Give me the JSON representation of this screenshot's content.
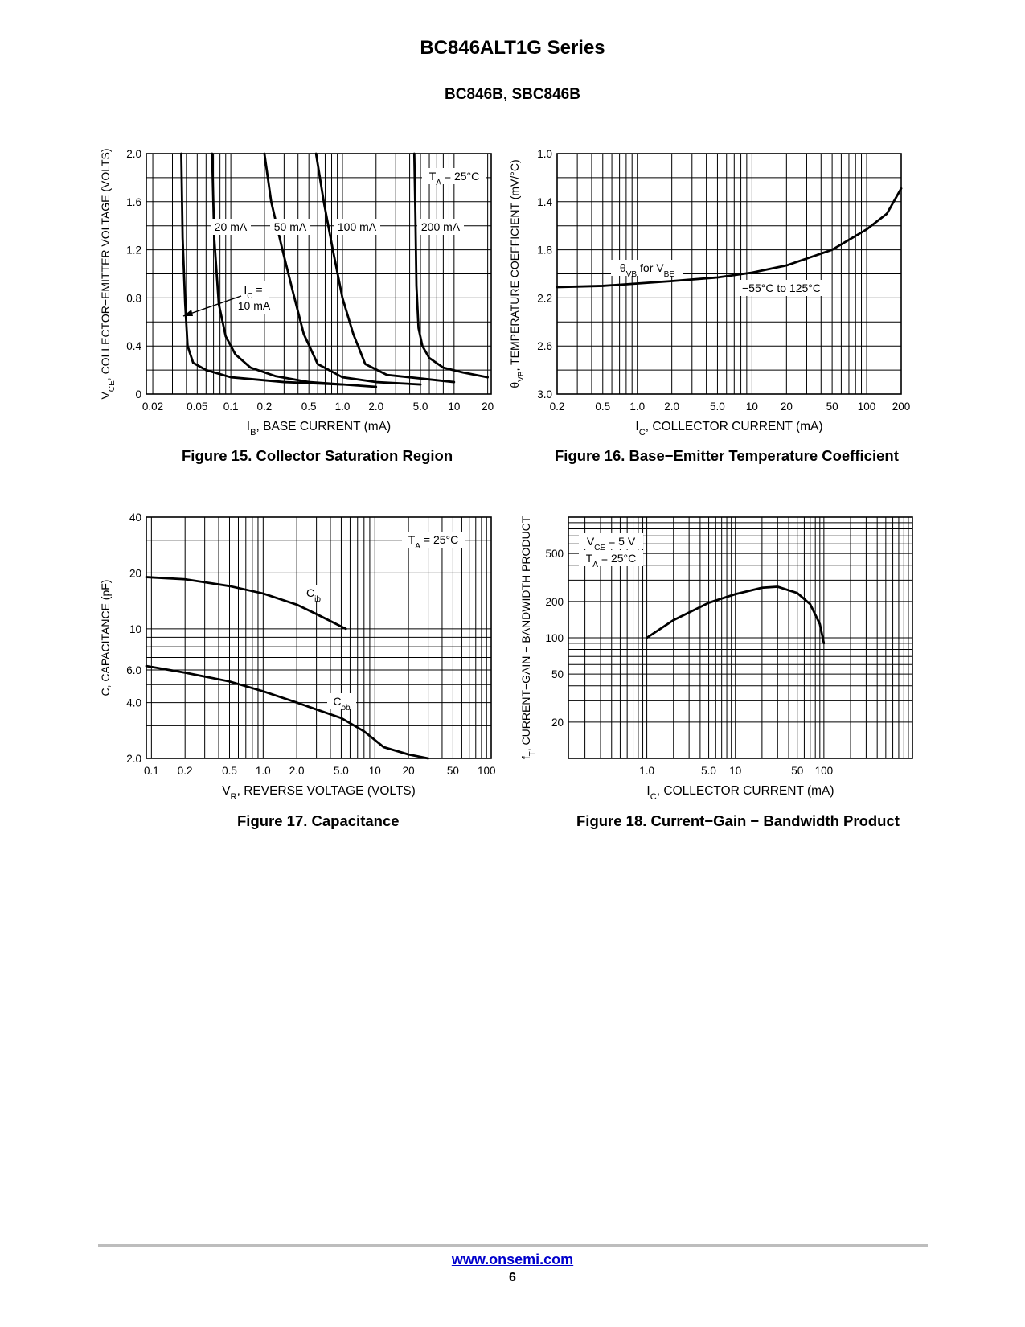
{
  "header": {
    "title": "BC846ALT1G Series",
    "subtitle": "BC846B, SBC846B"
  },
  "figures": [
    {
      "caption": "Figure 15. Collector Saturation Region"
    },
    {
      "caption": "Figure 16. Base−Emitter Temperature Coefficient"
    },
    {
      "caption": "Figure 17. Capacitance"
    },
    {
      "caption": "Figure 18. Current−Gain − Bandwidth Product"
    }
  ],
  "footer": {
    "link": "www.onsemi.com",
    "page": "6"
  },
  "colors": {
    "line": "#000000",
    "footer_link": "#0000cc",
    "footer_rule": "#bdbdbd"
  },
  "chart_data": [
    {
      "id": "fig15",
      "type": "line",
      "title": "Figure 15. Collector Saturation Region",
      "xlabel": "I_B, BASE CURRENT (mA)",
      "ylabel": "V_CE, COLLECTOR−EMITTER VOLTAGE (VOLTS)",
      "xscale": "log",
      "yscale": "linear",
      "xlim": [
        0.0175,
        21.5
      ],
      "ylim": [
        0,
        2.0
      ],
      "grid": true,
      "xticks": [
        {
          "v": 0.02,
          "label": "0.02"
        },
        {
          "v": 0.05,
          "label": "0.05"
        },
        {
          "v": 0.1,
          "label": "0.1"
        },
        {
          "v": 0.2,
          "label": "0.2"
        },
        {
          "v": 0.5,
          "label": "0.5"
        },
        {
          "v": 1.0,
          "label": "1.0"
        },
        {
          "v": 2.0,
          "label": "2.0"
        },
        {
          "v": 5.0,
          "label": "5.0"
        },
        {
          "v": 10,
          "label": "10"
        },
        {
          "v": 20,
          "label": "20"
        }
      ],
      "yticks": [
        {
          "v": 0,
          "label": "0"
        },
        {
          "v": 0.4,
          "label": "0.4"
        },
        {
          "v": 0.8,
          "label": "0.8"
        },
        {
          "v": 1.2,
          "label": "1.2"
        },
        {
          "v": 1.6,
          "label": "1.6"
        },
        {
          "v": 2.0,
          "label": "2.0"
        }
      ],
      "series": [
        {
          "name": "I_C = 10 mA",
          "x": [
            0.036,
            0.037,
            0.039,
            0.041,
            0.046,
            0.06,
            0.1,
            0.3,
            1.0
          ],
          "y": [
            2.0,
            1.3,
            0.75,
            0.4,
            0.26,
            0.2,
            0.14,
            0.1,
            0.08
          ]
        },
        {
          "name": "20 mA",
          "x": [
            0.068,
            0.071,
            0.078,
            0.09,
            0.11,
            0.15,
            0.25,
            0.5,
            1.0,
            2.0
          ],
          "y": [
            2.0,
            1.3,
            0.75,
            0.48,
            0.33,
            0.22,
            0.15,
            0.1,
            0.08,
            0.06
          ]
        },
        {
          "name": "50 mA",
          "x": [
            0.2,
            0.23,
            0.29,
            0.36,
            0.45,
            0.6,
            1.0,
            2.0,
            5.0
          ],
          "y": [
            2.0,
            1.6,
            1.2,
            0.85,
            0.5,
            0.25,
            0.14,
            0.1,
            0.08
          ]
        },
        {
          "name": "100 mA",
          "x": [
            0.58,
            0.68,
            0.82,
            1.0,
            1.25,
            1.6,
            2.5,
            5.0,
            10
          ],
          "y": [
            2.0,
            1.6,
            1.2,
            0.8,
            0.5,
            0.25,
            0.16,
            0.13,
            0.1
          ]
        },
        {
          "name": "200 mA",
          "x": [
            4.4,
            4.5,
            4.6,
            4.8,
            5.2,
            6.0,
            8.0,
            12,
            20
          ],
          "y": [
            2.0,
            1.5,
            0.9,
            0.55,
            0.4,
            0.3,
            0.22,
            0.18,
            0.14
          ]
        }
      ],
      "annotations": [
        {
          "text": "T_A = 25°C"
        },
        {
          "text": "20 mA"
        },
        {
          "text": "50 mA"
        },
        {
          "text": "100 mA"
        },
        {
          "text": "200 mA"
        },
        {
          "text": "I_C ="
        },
        {
          "text": "10 mA"
        }
      ]
    },
    {
      "id": "fig16",
      "type": "line",
      "title": "Figure 16. Base−Emitter Temperature Coefficient",
      "xlabel": "I_C, COLLECTOR CURRENT (mA)",
      "ylabel": "θ_VB, TEMPERATURE COEFFICIENT (mV/°C)",
      "xscale": "log",
      "yscale": "linear",
      "yinverted": true,
      "xlim": [
        0.2,
        200
      ],
      "ylim": [
        1.0,
        3.0
      ],
      "grid": true,
      "xticks": [
        {
          "v": 0.2,
          "label": "0.2"
        },
        {
          "v": 0.5,
          "label": "0.5"
        },
        {
          "v": 1.0,
          "label": "1.0"
        },
        {
          "v": 2.0,
          "label": "2.0"
        },
        {
          "v": 5.0,
          "label": "5.0"
        },
        {
          "v": 10,
          "label": "10"
        },
        {
          "v": 20,
          "label": "20"
        },
        {
          "v": 50,
          "label": "50"
        },
        {
          "v": 100,
          "label": "100"
        },
        {
          "v": 200,
          "label": "200"
        }
      ],
      "yticks": [
        {
          "v": 1.0,
          "label": "1.0"
        },
        {
          "v": 1.4,
          "label": "1.4"
        },
        {
          "v": 1.8,
          "label": "1.8"
        },
        {
          "v": 2.2,
          "label": "2.2"
        },
        {
          "v": 2.6,
          "label": "2.6"
        },
        {
          "v": 3.0,
          "label": "3.0"
        }
      ],
      "series": [
        {
          "name": "θ_VB for V_BE",
          "x": [
            0.2,
            0.5,
            1.0,
            2.0,
            5.0,
            10,
            20,
            50,
            100,
            150,
            200
          ],
          "y": [
            2.11,
            2.1,
            2.08,
            2.06,
            2.03,
            1.99,
            1.93,
            1.8,
            1.63,
            1.5,
            1.29
          ]
        }
      ],
      "annotations": [
        {
          "text": "θ_VB for V_BE"
        },
        {
          "text": "−55°C to 125°C"
        }
      ]
    },
    {
      "id": "fig17",
      "type": "line",
      "title": "Figure 17. Capacitance",
      "xlabel": "V_R, REVERSE VOLTAGE (VOLTS)",
      "ylabel": "C, CAPACITANCE (pF)",
      "xscale": "log",
      "yscale": "log",
      "xlim": [
        0.09,
        110
      ],
      "ylim": [
        2.0,
        40
      ],
      "grid": true,
      "xticks": [
        {
          "v": 0.1,
          "label": "0.1"
        },
        {
          "v": 0.2,
          "label": "0.2"
        },
        {
          "v": 0.5,
          "label": "0.5"
        },
        {
          "v": 1.0,
          "label": "1.0"
        },
        {
          "v": 2.0,
          "label": "2.0"
        },
        {
          "v": 5.0,
          "label": "5.0"
        },
        {
          "v": 10,
          "label": "10"
        },
        {
          "v": 20,
          "label": "20"
        },
        {
          "v": 50,
          "label": "50"
        },
        {
          "v": 100,
          "label": "100"
        }
      ],
      "yticks": [
        {
          "v": 2.0,
          "label": "2.0"
        },
        {
          "v": 4.0,
          "label": "4.0"
        },
        {
          "v": 6.0,
          "label": "6.0"
        },
        {
          "v": 10,
          "label": "10"
        },
        {
          "v": 20,
          "label": "20"
        },
        {
          "v": 40,
          "label": "40"
        }
      ],
      "series": [
        {
          "name": "C_ib",
          "x": [
            0.09,
            0.2,
            0.5,
            1.0,
            2.0,
            3.0,
            4.0,
            5.5
          ],
          "y": [
            19,
            18.5,
            17,
            15.5,
            13.5,
            12,
            11,
            10
          ]
        },
        {
          "name": "C_ob",
          "x": [
            0.09,
            0.2,
            0.5,
            1.0,
            2.0,
            5.0,
            8.0,
            12,
            20,
            30
          ],
          "y": [
            6.3,
            5.8,
            5.2,
            4.6,
            4.0,
            3.3,
            2.8,
            2.3,
            2.1,
            2.0
          ]
        }
      ],
      "annotations": [
        {
          "text": "T_A = 25°C"
        },
        {
          "text": "C_ib"
        },
        {
          "text": "C_ob"
        }
      ]
    },
    {
      "id": "fig18",
      "type": "line",
      "title": "Figure 18. Current−Gain − Bandwidth Product",
      "xlabel": "I_C, COLLECTOR CURRENT (mA)",
      "ylabel": "f_T, CURRENT−GAIN − BANDWIDTH PRODUCT",
      "xscale": "log",
      "yscale": "log",
      "xlim": [
        0.13,
        1000
      ],
      "ylim": [
        10,
        1000
      ],
      "grid": true,
      "xticks": [
        {
          "v": 1.0,
          "label": "1.0"
        },
        {
          "v": 5.0,
          "label": "5.0"
        },
        {
          "v": 10,
          "label": "10"
        },
        {
          "v": 50,
          "label": "50"
        },
        {
          "v": 100,
          "label": "100"
        }
      ],
      "yticks": [
        {
          "v": 20,
          "label": "20"
        },
        {
          "v": 50,
          "label": "50"
        },
        {
          "v": 100,
          "label": "100"
        },
        {
          "v": 200,
          "label": "200"
        },
        {
          "v": 500,
          "label": "500"
        }
      ],
      "series": [
        {
          "name": "f_T",
          "x": [
            1.0,
            2.0,
            5.0,
            10,
            20,
            30,
            50,
            70,
            90,
            100
          ],
          "y": [
            100,
            140,
            195,
            230,
            260,
            265,
            235,
            190,
            130,
            90
          ]
        }
      ],
      "annotations": [
        {
          "text": "V_CE = 5 V"
        },
        {
          "text": "T_A = 25°C"
        }
      ]
    }
  ]
}
